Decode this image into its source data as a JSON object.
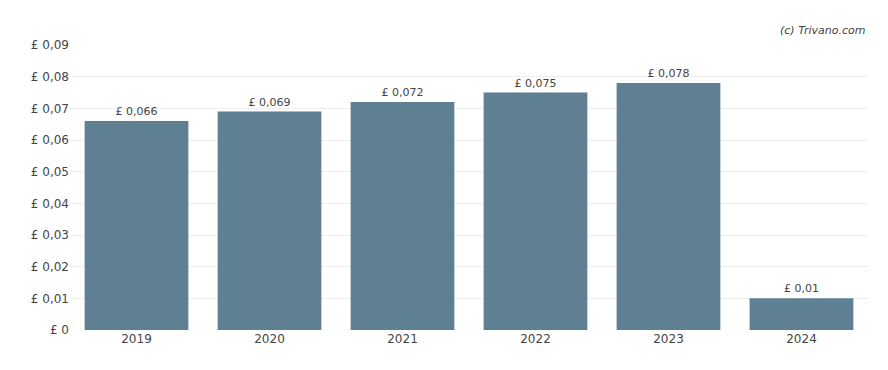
{
  "chart_data": {
    "type": "bar",
    "categories": [
      "2019",
      "2020",
      "2021",
      "2022",
      "2023",
      "2024"
    ],
    "values": [
      0.066,
      0.069,
      0.072,
      0.075,
      0.078,
      0.01
    ],
    "value_labels": [
      "£ 0,066",
      "£ 0,069",
      "£ 0,072",
      "£ 0,075",
      "£ 0,078",
      "£ 0,01"
    ],
    "color": "#5f7f92",
    "ylim": [
      0,
      0.09
    ],
    "yticks": [
      {
        "value": 0,
        "label": "£ 0"
      },
      {
        "value": 0.01,
        "label": "£ 0,01"
      },
      {
        "value": 0.02,
        "label": "£ 0,02"
      },
      {
        "value": 0.03,
        "label": "£ 0,03"
      },
      {
        "value": 0.04,
        "label": "£ 0,04"
      },
      {
        "value": 0.05,
        "label": "£ 0,05"
      },
      {
        "value": 0.06,
        "label": "£ 0,06"
      },
      {
        "value": 0.07,
        "label": "£ 0,07"
      },
      {
        "value": 0.08,
        "label": "£ 0,08"
      },
      {
        "value": 0.09,
        "label": "£ 0,09"
      }
    ],
    "grid": true,
    "annotations": [
      "(c) Trivano.com"
    ]
  }
}
